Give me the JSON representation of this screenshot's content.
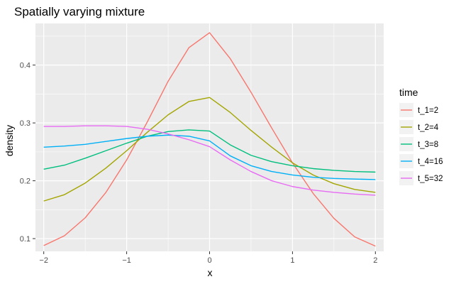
{
  "chart_data": {
    "type": "line",
    "title": "Spatially varying mixture",
    "xlabel": "x",
    "ylabel": "density",
    "xlim": [
      -2.1,
      2.1
    ],
    "ylim": [
      0.078,
      0.472
    ],
    "x_ticks": [
      -2,
      -1,
      0,
      1,
      2
    ],
    "x_tick_labels": [
      "−2",
      "−1",
      "0",
      "1",
      "2"
    ],
    "y_ticks": [
      0.1,
      0.2,
      0.3,
      0.4
    ],
    "y_tick_labels": [
      "0.1",
      "0.2",
      "0.3",
      "0.4"
    ],
    "grid": true,
    "legend": {
      "title": "time",
      "placement": "right"
    },
    "x": [
      -2,
      -1.75,
      -1.5,
      -1.25,
      -1,
      -0.75,
      -0.5,
      -0.25,
      0,
      0.25,
      0.5,
      0.75,
      1,
      1.25,
      1.5,
      1.75,
      2
    ],
    "series": [
      {
        "name": "t_1=2",
        "color": "#F8766D",
        "values": [
          0.088,
          0.105,
          0.136,
          0.18,
          0.236,
          0.302,
          0.372,
          0.43,
          0.456,
          0.411,
          0.353,
          0.291,
          0.231,
          0.178,
          0.135,
          0.103,
          0.087
        ]
      },
      {
        "name": "t_2=4",
        "color": "#A3A500",
        "values": [
          0.165,
          0.176,
          0.196,
          0.222,
          0.252,
          0.284,
          0.314,
          0.337,
          0.344,
          0.318,
          0.287,
          0.258,
          0.231,
          0.21,
          0.195,
          0.185,
          0.18
        ]
      },
      {
        "name": "t_3=8",
        "color": "#00BF7D",
        "values": [
          0.22,
          0.227,
          0.239,
          0.252,
          0.265,
          0.277,
          0.285,
          0.288,
          0.286,
          0.262,
          0.244,
          0.233,
          0.226,
          0.221,
          0.218,
          0.216,
          0.215
        ]
      },
      {
        "name": "t_4=16",
        "color": "#00B0F6",
        "values": [
          0.258,
          0.26,
          0.263,
          0.268,
          0.273,
          0.277,
          0.279,
          0.277,
          0.269,
          0.243,
          0.226,
          0.216,
          0.21,
          0.206,
          0.204,
          0.203,
          0.202
        ]
      },
      {
        "name": "t_5=32",
        "color": "#E76BF3",
        "values": [
          0.294,
          0.294,
          0.295,
          0.295,
          0.294,
          0.289,
          0.281,
          0.271,
          0.259,
          0.236,
          0.216,
          0.2,
          0.19,
          0.184,
          0.18,
          0.177,
          0.175
        ]
      }
    ]
  }
}
